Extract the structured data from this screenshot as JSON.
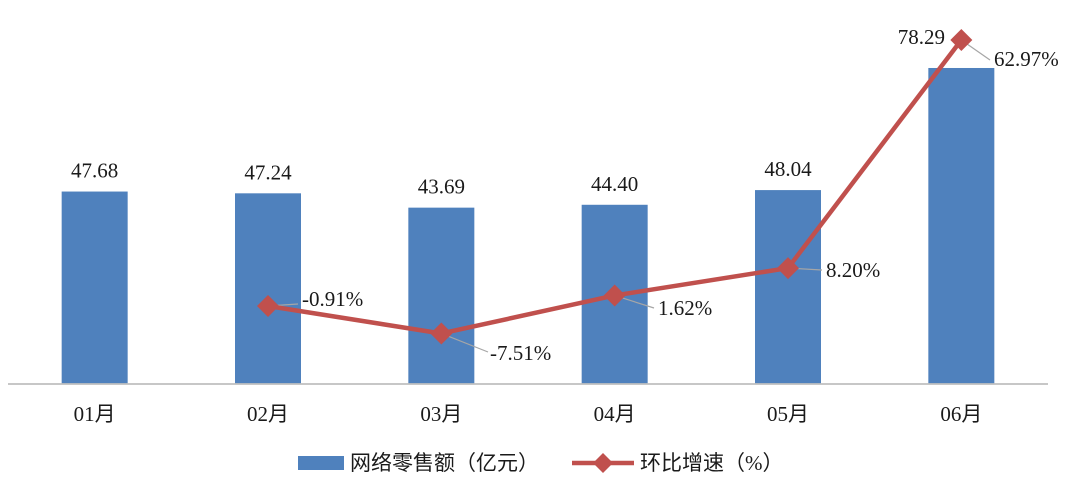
{
  "chart_data": {
    "type": "bar",
    "categories": [
      "01月",
      "02月",
      "03月",
      "04月",
      "05月",
      "06月"
    ],
    "series": [
      {
        "name": "网络零售额（亿元）",
        "type": "bar",
        "values": [
          47.68,
          47.24,
          43.69,
          44.4,
          48.04,
          78.29
        ],
        "labels": [
          "47.68",
          "47.24",
          "43.69",
          "44.40",
          "48.04",
          "78.29"
        ],
        "color": "#4f81bd"
      },
      {
        "name": "环比增速（%）",
        "type": "line",
        "values": [
          null,
          -0.91,
          -7.51,
          1.62,
          8.2,
          62.97
        ],
        "labels": [
          "",
          "-0.91%",
          "-7.51%",
          "1.62%",
          "8.20%",
          "62.97%"
        ],
        "color": "#c0504d"
      }
    ],
    "legend": {
      "position": "bottom",
      "items": [
        "网络零售额（亿元）",
        "环比增速（%）"
      ]
    },
    "axes": {
      "primary_y_range": [
        0,
        80
      ],
      "secondary_y_range": [
        -30,
        70
      ],
      "grid": false
    }
  }
}
